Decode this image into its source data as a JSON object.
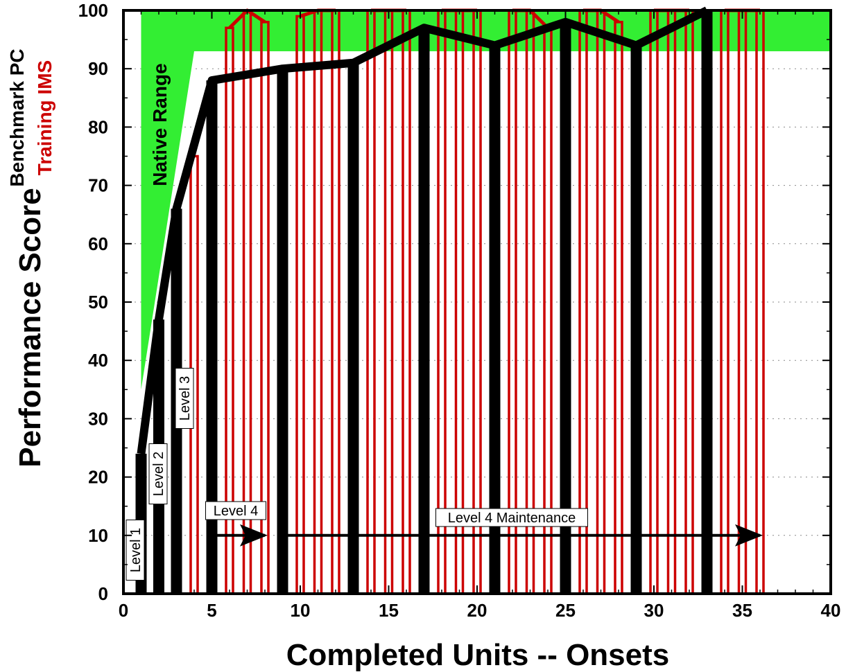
{
  "chart_data": {
    "type": "bar",
    "title": "",
    "xlabel": "Completed Units -- Onsets",
    "ylabel": "Performance Score",
    "xlim": [
      0,
      40
    ],
    "ylim": [
      0,
      100
    ],
    "x_ticks": [
      "0",
      "5",
      "10",
      "15",
      "20",
      "25",
      "30",
      "35",
      "40"
    ],
    "y_ticks": [
      "0",
      "10",
      "20",
      "30",
      "40",
      "50",
      "60",
      "70",
      "80",
      "90",
      "100"
    ],
    "grid": "dotted horizontal",
    "legend": [
      {
        "label": "Benchmark PC",
        "color": "#000000"
      },
      {
        "label": "Training IMS",
        "color": "#cc0000"
      }
    ],
    "series": [
      {
        "name": "Benchmark PC",
        "color": "#000000",
        "x": [
          1,
          2,
          3,
          5,
          9,
          13,
          17,
          21,
          25,
          29,
          33
        ],
        "values": [
          24,
          47,
          66,
          88,
          90,
          91,
          97,
          94,
          98,
          94,
          100
        ]
      },
      {
        "name": "Training IMS",
        "color": "#cc0000",
        "x": [
          4,
          6,
          7,
          8,
          10,
          11,
          12,
          14,
          15,
          16,
          18,
          19,
          20,
          22,
          23,
          24,
          26,
          27,
          28,
          30,
          31,
          32,
          34,
          35,
          36
        ],
        "values": [
          75,
          97,
          100,
          98,
          99,
          100,
          100,
          100,
          100,
          100,
          100,
          100,
          100,
          100,
          100,
          97,
          100,
          100,
          98,
          100,
          100,
          100,
          100,
          100,
          100
        ]
      }
    ],
    "native_range": {
      "label": "Native Range",
      "color": "#33ee33",
      "upper": [
        [
          1,
          100
        ],
        [
          40,
          100
        ]
      ],
      "lower": [
        [
          1,
          35
        ],
        [
          4,
          93
        ],
        [
          40,
          93
        ]
      ]
    },
    "annotations": {
      "level1": "Level 1",
      "level2": "Level 2",
      "level3": "Level 3",
      "level4": "Level 4",
      "level4_maintenance": "Level 4 Maintenance"
    },
    "arrows": [
      {
        "from": 5,
        "to": 8,
        "y": 10
      },
      {
        "from": 9,
        "to": 36,
        "y": 10
      }
    ]
  }
}
